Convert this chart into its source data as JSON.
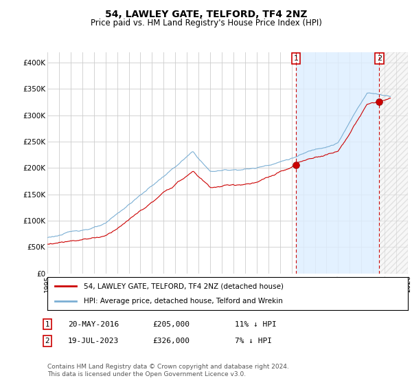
{
  "title": "54, LAWLEY GATE, TELFORD, TF4 2NZ",
  "subtitle": "Price paid vs. HM Land Registry's House Price Index (HPI)",
  "ylabel_ticks": [
    "£0",
    "£50K",
    "£100K",
    "£150K",
    "£200K",
    "£250K",
    "£300K",
    "£350K",
    "£400K"
  ],
  "ytick_values": [
    0,
    50000,
    100000,
    150000,
    200000,
    250000,
    300000,
    350000,
    400000
  ],
  "ylim": [
    0,
    420000
  ],
  "xlim_start": 1995.0,
  "xlim_end": 2026.0,
  "sale1_x": 2016.38,
  "sale1_y": 205000,
  "sale2_x": 2023.54,
  "sale2_y": 326000,
  "hpi_color": "#7bafd4",
  "sale_color": "#cc0000",
  "marker_color": "#cc0000",
  "dashed_color": "#cc0000",
  "fill_color": "#ddeeff",
  "grid_color": "#cccccc",
  "background_color": "#ffffff",
  "legend_text1": "54, LAWLEY GATE, TELFORD, TF4 2NZ (detached house)",
  "legend_text2": "HPI: Average price, detached house, Telford and Wrekin",
  "footer": "Contains HM Land Registry data © Crown copyright and database right 2024.\nThis data is licensed under the Open Government Licence v3.0.",
  "title_fontsize": 10,
  "subtitle_fontsize": 8.5
}
